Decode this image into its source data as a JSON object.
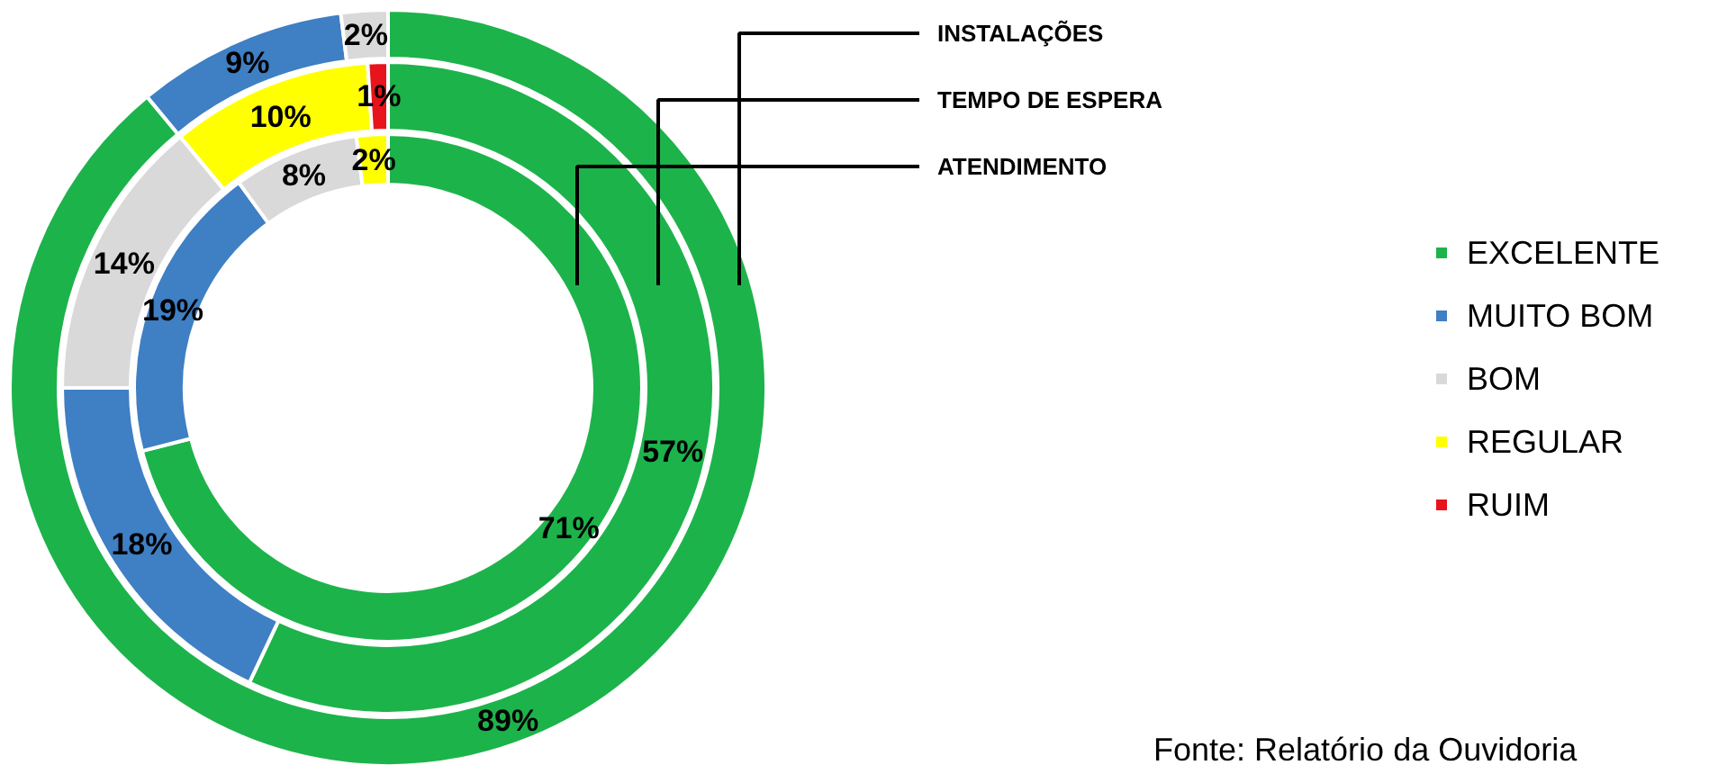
{
  "chart_data": {
    "type": "donut",
    "categories": [
      "EXCELENTE",
      "MUITO BOM",
      "BOM",
      "REGULAR",
      "RUIM"
    ],
    "colors": [
      "#1db34b",
      "#3f7fc4",
      "#d9d9d9",
      "#ffff00",
      "#e8141b"
    ],
    "series": [
      {
        "name": "INSTALAÇÕES",
        "values": [
          89,
          9,
          2,
          null,
          null
        ],
        "value_labels": [
          "89%",
          "9%",
          "2%",
          null,
          null
        ]
      },
      {
        "name": "TEMPO DE ESPERA",
        "values": [
          57,
          18,
          14,
          10,
          1
        ],
        "value_labels": [
          "57%",
          "18%",
          "14%",
          "10%",
          "1%"
        ]
      },
      {
        "name": "ATENDIMENTO",
        "values": [
          71,
          19,
          8,
          2,
          null
        ],
        "value_labels": [
          "71%",
          "19%",
          "8%",
          "2%",
          null
        ]
      }
    ],
    "legend": "right",
    "annotations": [
      "Fonte: Relatório da Ouvidoria"
    ]
  }
}
